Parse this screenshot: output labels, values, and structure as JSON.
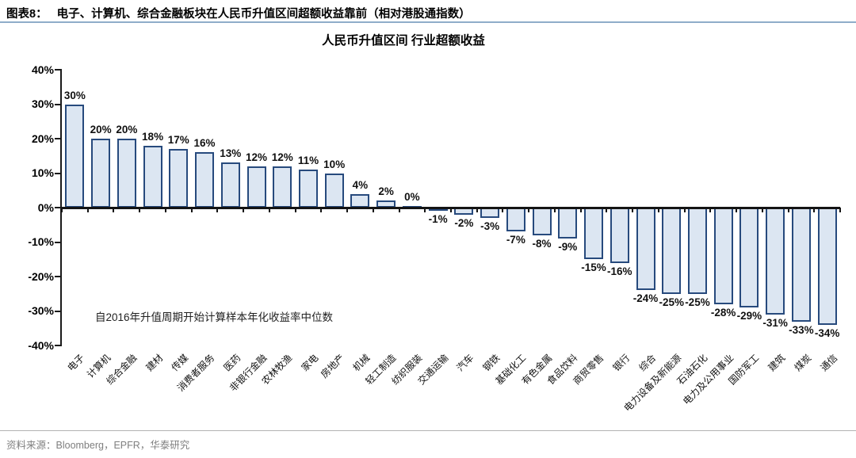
{
  "header": {
    "tag": "图表8：",
    "title": "电子、计算机、综合金融板块在人民币升值区间超额收益靠前（相对港股通指数）"
  },
  "footer": {
    "source": "资料来源：Bloomberg，EPFR，华泰研究"
  },
  "chart_data": {
    "type": "bar",
    "title": "人民币升值区间 行业超额收益",
    "annotation": "自2016年升值周期开始计算样本年化收益率中位数",
    "unit": "%",
    "categories": [
      "电子",
      "计算机",
      "综合金融",
      "建材",
      "传媒",
      "消费者服务",
      "医药",
      "非银行金融",
      "农林牧渔",
      "家电",
      "房地产",
      "机械",
      "轻工制造",
      "纺织服装",
      "交通运输",
      "汽车",
      "钢铁",
      "基础化工",
      "有色金属",
      "食品饮料",
      "商贸零售",
      "银行",
      "综合",
      "电力设备及新能源",
      "石油石化",
      "电力及公用事业",
      "国防军工",
      "建筑",
      "煤炭",
      "通信"
    ],
    "values": [
      30,
      20,
      20,
      18,
      17,
      16,
      13,
      12,
      12,
      11,
      10,
      4,
      2,
      0,
      -1,
      -2,
      -3,
      -7,
      -8,
      -9,
      -15,
      -16,
      -24,
      -25,
      -25,
      -28,
      -29,
      -31,
      -33,
      -34
    ],
    "ylim": [
      -40,
      40
    ],
    "yticks": [
      "40%",
      "30%",
      "20%",
      "10%",
      "0%",
      "-10%",
      "-20%",
      "-30%",
      "-40%"
    ],
    "grid": false,
    "legend": "none",
    "colors": {
      "bar_fill": "#dce6f2",
      "bar_border": "#274a7d",
      "axis": "#1a1a1a",
      "header_rule": "#8fadc9",
      "footer_text": "#7f7f7f"
    }
  }
}
